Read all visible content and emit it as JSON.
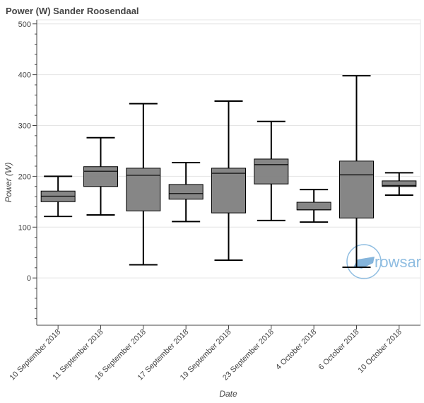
{
  "chart_data": {
    "type": "boxplot",
    "title": "Power (W)  Sander Roosendaal",
    "xlabel": "Date",
    "ylabel": "Power (W)",
    "ylim": [
      -93,
      508
    ],
    "yticks": [
      0,
      100,
      200,
      300,
      400,
      500
    ],
    "grid": true,
    "box_color": "#808080",
    "categories": [
      "10 September 2018",
      "11 September 2018",
      "16 September 2018",
      "17 September 2018",
      "19 September 2018",
      "23 September 2018",
      "4 October 2018",
      "6 October 2018",
      "10 October 2018"
    ],
    "boxes": [
      {
        "low": 121,
        "q1": 150,
        "median": 161,
        "q3": 171,
        "high": 200
      },
      {
        "low": 124,
        "q1": 180,
        "median": 210,
        "q3": 219,
        "high": 276
      },
      {
        "low": 26,
        "q1": 132,
        "median": 202,
        "q3": 216,
        "high": 343
      },
      {
        "low": 111,
        "q1": 155,
        "median": 166,
        "q3": 184,
        "high": 227
      },
      {
        "low": 35,
        "q1": 128,
        "median": 206,
        "q3": 216,
        "high": 348
      },
      {
        "low": 113,
        "q1": 185,
        "median": 223,
        "q3": 234,
        "high": 308
      },
      {
        "low": 110,
        "q1": 134,
        "median": 134,
        "q3": 149,
        "high": 174
      },
      {
        "low": 21,
        "q1": 118,
        "median": 203,
        "q3": 230,
        "high": 398
      },
      {
        "low": 163,
        "q1": 180,
        "median": 182,
        "q3": 191,
        "high": 207
      }
    ]
  },
  "watermark": "rowsandall"
}
